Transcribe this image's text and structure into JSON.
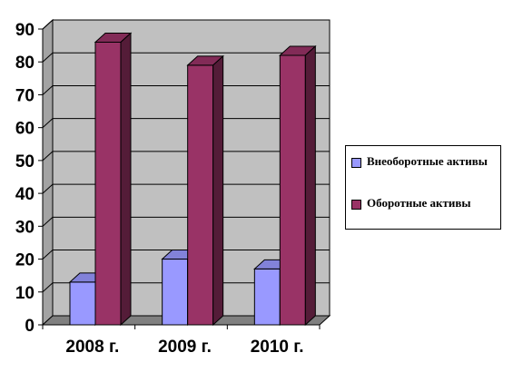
{
  "chart_data": {
    "type": "bar",
    "categories": [
      "2008 г.",
      "2009 г.",
      "2010 г."
    ],
    "series": [
      {
        "name": "Внеоборотные активы",
        "values": [
          13,
          20,
          17
        ],
        "color": "#9999ff"
      },
      {
        "name": "Оборотные активы",
        "values": [
          86,
          79,
          82
        ],
        "color": "#993366"
      }
    ],
    "ylim": [
      0,
      90
    ],
    "yticks": [
      "0",
      "10",
      "20",
      "30",
      "40",
      "50",
      "60",
      "70",
      "80",
      "90"
    ],
    "grid": true,
    "legend_position": "right",
    "wall_color": "#c0c0c0",
    "floor_color": "#808080",
    "three_d": true
  }
}
